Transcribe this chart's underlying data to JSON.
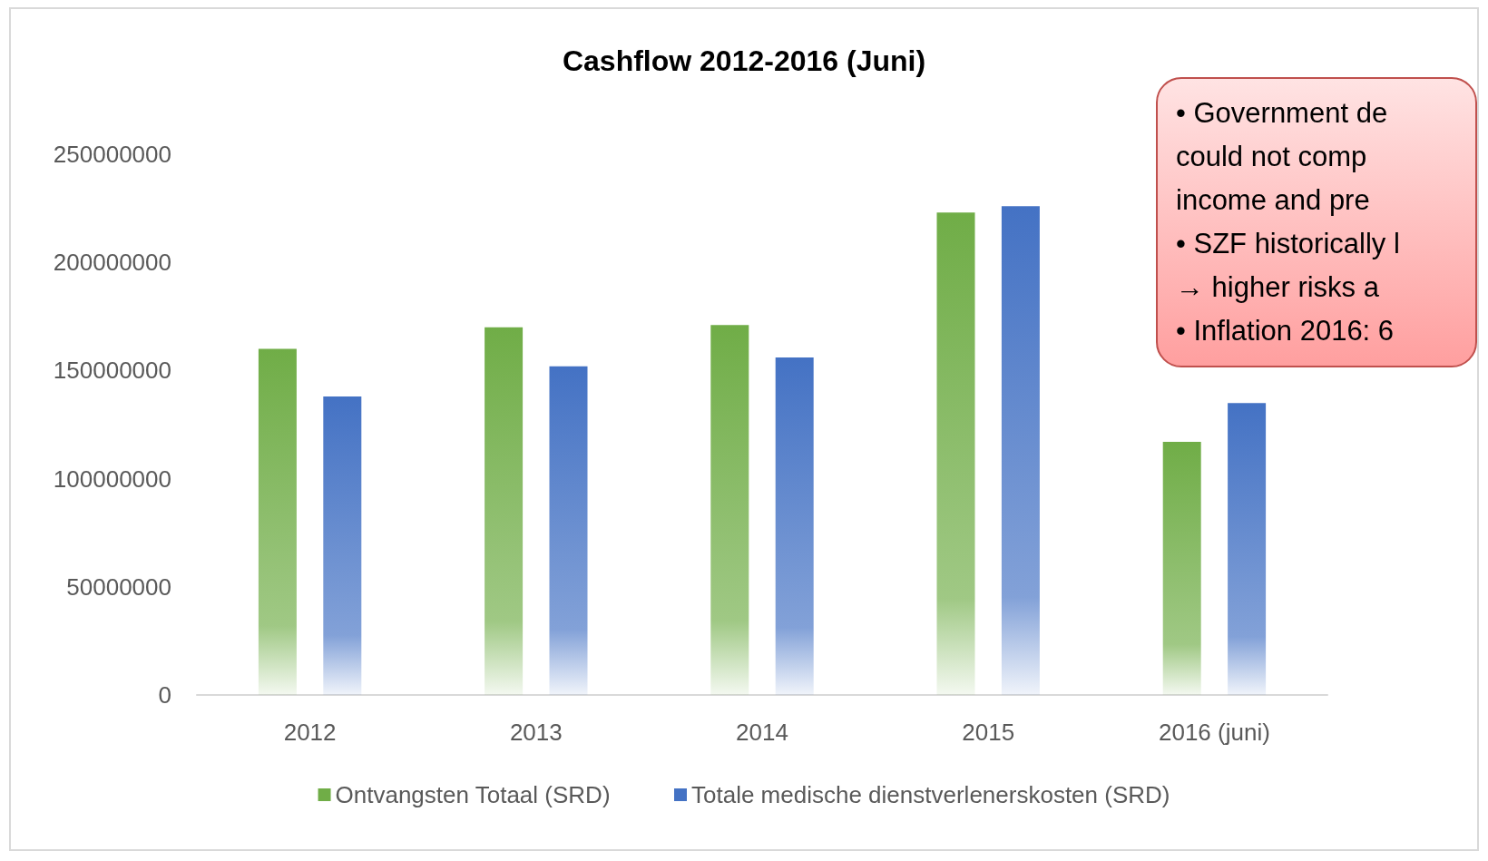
{
  "chart_data": {
    "type": "bar",
    "title": "Cashflow 2012-2016 (Juni)",
    "categories": [
      "2012",
      "2013",
      "2014",
      "2015",
      "2016 (juni)"
    ],
    "series": [
      {
        "name": "Ontvangsten Totaal (SRD)",
        "color": "#70ad47",
        "values": [
          160000000,
          170000000,
          171000000,
          223000000,
          117000000
        ]
      },
      {
        "name": "Totale medische dienstverlenerskosten (SRD)",
        "color": "#4472c4",
        "values": [
          138000000,
          152000000,
          156000000,
          226000000,
          135000000
        ]
      }
    ],
    "ylim": [
      0,
      250000000
    ],
    "yticks": [
      0,
      50000000,
      100000000,
      150000000,
      200000000,
      250000000
    ],
    "grid": false,
    "legend": "bottom",
    "annotations": [
      "• Government de",
      "could not comp",
      "income and pre",
      "• SZF historically l",
      "→ higher risks a",
      "• Inflation 2016: 6"
    ]
  }
}
